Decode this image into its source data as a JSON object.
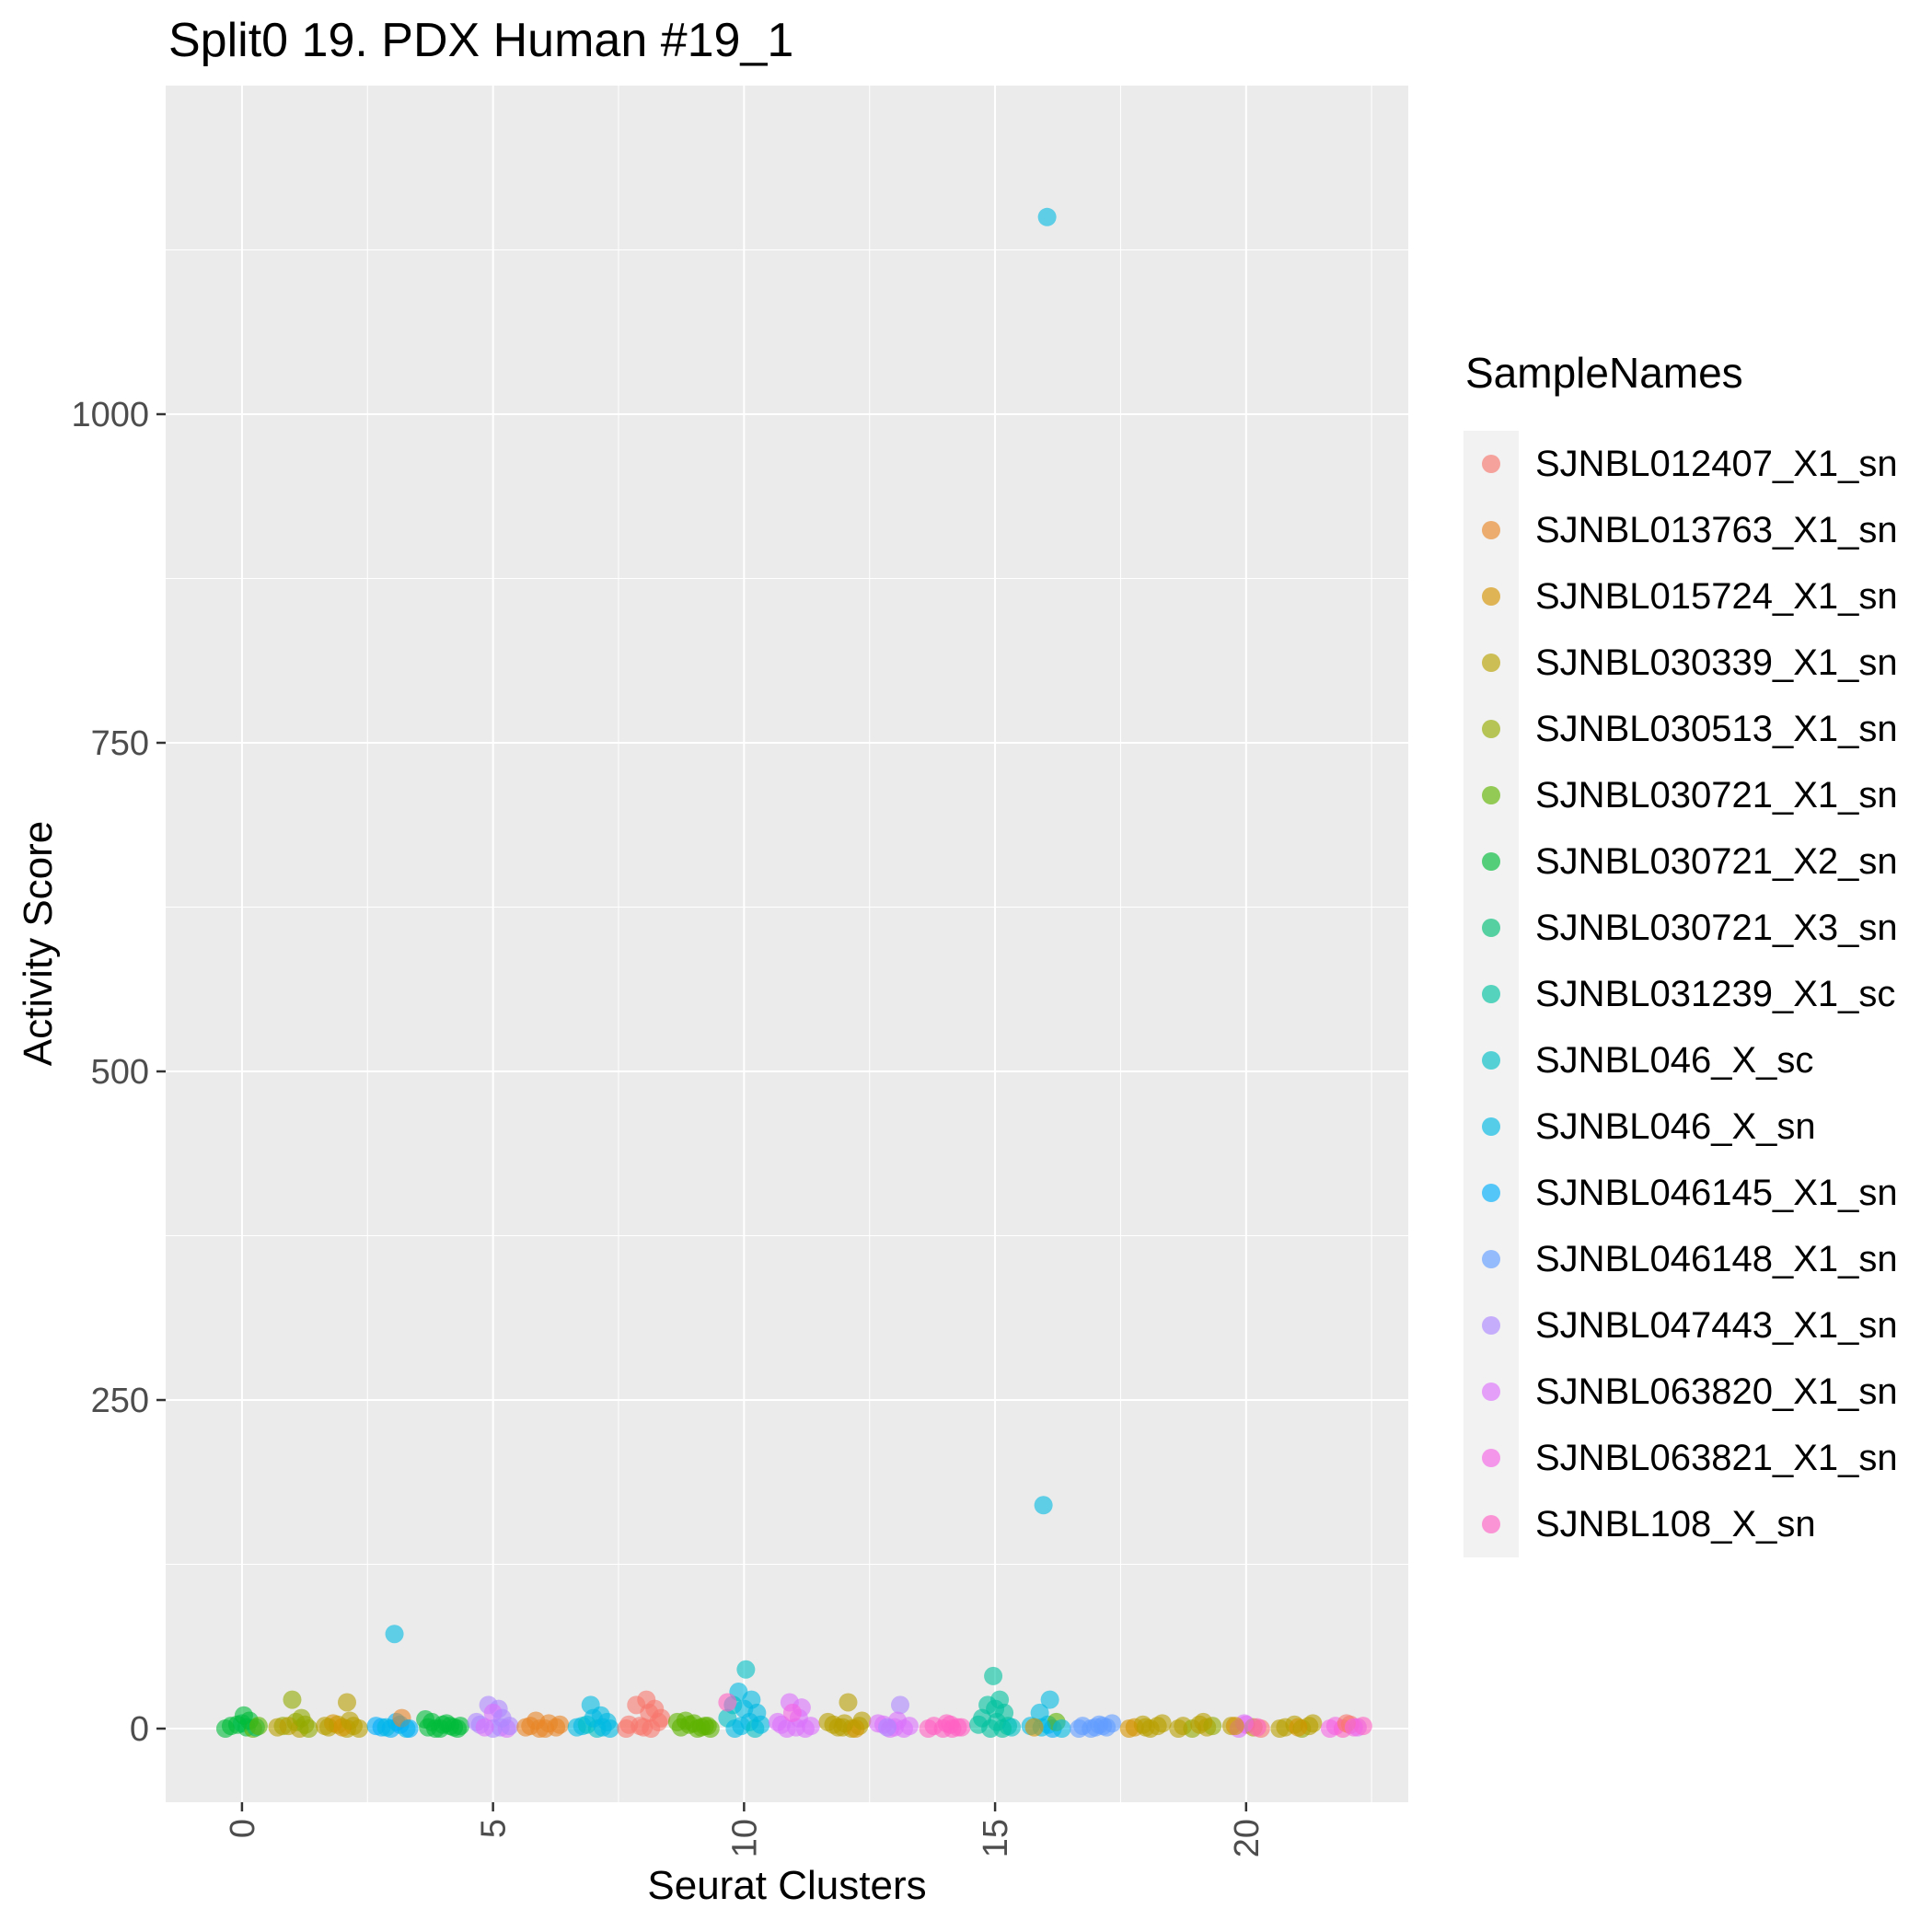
{
  "chart_data": {
    "type": "scatter",
    "title": "Split0 19. PDX Human #19_1",
    "xlabel": "Seurat Clusters",
    "ylabel": "Activity Score",
    "legend_title": "SampleNames",
    "xlim": [
      -1.52,
      23.23
    ],
    "ylim": [
      -56,
      1250
    ],
    "xticks": [
      0,
      5,
      10,
      15,
      20
    ],
    "yticks": [
      0,
      250,
      500,
      750,
      1000
    ],
    "grid": "major+minor",
    "legend_position": "right",
    "panel_bg": "#EBEBEB",
    "grid_color": "#FFFFFF",
    "axis_text_color": "#4D4D4D",
    "tick_color": "#333333",
    "point_alpha": 0.6,
    "samples": [
      {
        "name": "SJNBL012407_X1_sn",
        "color": "#F8766D"
      },
      {
        "name": "SJNBL013763_X1_sn",
        "color": "#E88526"
      },
      {
        "name": "SJNBL015724_X1_sn",
        "color": "#D39200"
      },
      {
        "name": "SJNBL030339_X1_sn",
        "color": "#B79F00"
      },
      {
        "name": "SJNBL030513_X1_sn",
        "color": "#93AA00"
      },
      {
        "name": "SJNBL030721_X1_sn",
        "color": "#5EB300"
      },
      {
        "name": "SJNBL030721_X2_sn",
        "color": "#00BA38"
      },
      {
        "name": "SJNBL030721_X3_sn",
        "color": "#00BF74"
      },
      {
        "name": "SJNBL031239_X1_sc",
        "color": "#00C19F"
      },
      {
        "name": "SJNBL046_X_sc",
        "color": "#00BFC4"
      },
      {
        "name": "SJNBL046_X_sn",
        "color": "#00B9E3"
      },
      {
        "name": "SJNBL046145_X1_sn",
        "color": "#00ADFA"
      },
      {
        "name": "SJNBL046148_X1_sn",
        "color": "#619CFF"
      },
      {
        "name": "SJNBL047443_X1_sn",
        "color": "#AE87FF"
      },
      {
        "name": "SJNBL063820_X1_sn",
        "color": "#DB72FB"
      },
      {
        "name": "SJNBL063821_X1_sn",
        "color": "#F564E3"
      },
      {
        "name": "SJNBL108_X_sn",
        "color": "#FF61C3"
      }
    ],
    "points_format": [
      "cluster",
      "activity_score",
      "sample_index",
      "jitter_px"
    ],
    "points": [
      [
        0,
        2,
        6,
        -12
      ],
      [
        0,
        1,
        6,
        5
      ],
      [
        0,
        4,
        7,
        0
      ],
      [
        0,
        0,
        5,
        12
      ],
      [
        0,
        3,
        6,
        -5
      ],
      [
        0,
        1,
        7,
        15
      ],
      [
        0,
        6,
        6,
        8
      ],
      [
        0,
        0,
        6,
        -18
      ],
      [
        0,
        10,
        6,
        2
      ],
      [
        0,
        2,
        5,
        18
      ],
      [
        1,
        22,
        4,
        0
      ],
      [
        1,
        2,
        4,
        -10
      ],
      [
        1,
        0,
        3,
        8
      ],
      [
        1,
        3,
        4,
        14
      ],
      [
        1,
        1,
        3,
        -16
      ],
      [
        1,
        5,
        4,
        4
      ],
      [
        1,
        0,
        4,
        18
      ],
      [
        1,
        2,
        3,
        -4
      ],
      [
        1,
        8,
        4,
        10
      ],
      [
        2,
        20,
        3,
        5
      ],
      [
        2,
        1,
        3,
        -15
      ],
      [
        2,
        3,
        3,
        -5
      ],
      [
        2,
        0,
        3,
        5
      ],
      [
        2,
        2,
        3,
        12
      ],
      [
        2,
        4,
        2,
        -10
      ],
      [
        2,
        0,
        3,
        18
      ],
      [
        2,
        1,
        2,
        0
      ],
      [
        2,
        6,
        3,
        8
      ],
      [
        2,
        2,
        3,
        -19
      ],
      [
        3,
        72,
        10,
        2
      ],
      [
        3,
        1,
        11,
        -12
      ],
      [
        3,
        0,
        11,
        -2
      ],
      [
        3,
        3,
        11,
        8
      ],
      [
        3,
        0,
        10,
        15
      ],
      [
        3,
        2,
        11,
        -18
      ],
      [
        3,
        5,
        11,
        4
      ],
      [
        3,
        8,
        1,
        10
      ],
      [
        3,
        0,
        11,
        18
      ],
      [
        3,
        1,
        10,
        -7
      ],
      [
        4,
        1,
        6,
        -16
      ],
      [
        4,
        0,
        6,
        -8
      ],
      [
        4,
        3,
        6,
        0
      ],
      [
        4,
        2,
        6,
        8
      ],
      [
        4,
        0,
        6,
        16
      ],
      [
        4,
        5,
        6,
        -12
      ],
      [
        4,
        1,
        6,
        12
      ],
      [
        4,
        4,
        6,
        4
      ],
      [
        4,
        0,
        6,
        -3
      ],
      [
        4,
        7,
        6,
        -19
      ],
      [
        4,
        2,
        6,
        19
      ],
      [
        5,
        18,
        13,
        -5
      ],
      [
        5,
        15,
        13,
        6
      ],
      [
        5,
        12,
        14,
        0
      ],
      [
        5,
        3,
        13,
        -14
      ],
      [
        5,
        1,
        13,
        8
      ],
      [
        5,
        0,
        14,
        15
      ],
      [
        5,
        2,
        13,
        18
      ],
      [
        5,
        5,
        13,
        -18
      ],
      [
        5,
        0,
        13,
        0
      ],
      [
        5,
        8,
        13,
        10
      ],
      [
        5,
        1,
        14,
        -9
      ],
      [
        6,
        2,
        1,
        -14
      ],
      [
        6,
        0,
        1,
        -4
      ],
      [
        6,
        4,
        1,
        6
      ],
      [
        6,
        1,
        1,
        14
      ],
      [
        6,
        0,
        1,
        2
      ],
      [
        6,
        6,
        1,
        -8
      ],
      [
        6,
        3,
        1,
        18
      ],
      [
        6,
        1,
        1,
        -19
      ],
      [
        7,
        18,
        10,
        -3
      ],
      [
        7,
        10,
        10,
        8
      ],
      [
        7,
        2,
        10,
        -12
      ],
      [
        7,
        0,
        9,
        4
      ],
      [
        7,
        5,
        10,
        15
      ],
      [
        7,
        1,
        10,
        -18
      ],
      [
        7,
        3,
        9,
        -7
      ],
      [
        7,
        0,
        10,
        18
      ],
      [
        7,
        8,
        10,
        0
      ],
      [
        7,
        1,
        10,
        10
      ],
      [
        8,
        22,
        0,
        3
      ],
      [
        8,
        18,
        0,
        -8
      ],
      [
        8,
        15,
        0,
        12
      ],
      [
        8,
        3,
        0,
        -16
      ],
      [
        8,
        1,
        0,
        0
      ],
      [
        8,
        0,
        0,
        8
      ],
      [
        8,
        5,
        0,
        16
      ],
      [
        8,
        2,
        0,
        -4
      ],
      [
        8,
        0,
        0,
        -19
      ],
      [
        8,
        8,
        0,
        19
      ],
      [
        8,
        12,
        0,
        6
      ],
      [
        9,
        1,
        5,
        -14
      ],
      [
        9,
        3,
        5,
        -5
      ],
      [
        9,
        0,
        5,
        4
      ],
      [
        9,
        2,
        5,
        12
      ],
      [
        9,
        5,
        5,
        -18
      ],
      [
        9,
        0,
        5,
        18
      ],
      [
        9,
        4,
        5,
        0
      ],
      [
        9,
        1,
        5,
        8
      ],
      [
        9,
        6,
        5,
        -9
      ],
      [
        9,
        2,
        5,
        15
      ],
      [
        10,
        45,
        9,
        2
      ],
      [
        10,
        28,
        10,
        -6
      ],
      [
        10,
        22,
        10,
        8
      ],
      [
        10,
        18,
        9,
        -12
      ],
      [
        10,
        15,
        10,
        0
      ],
      [
        10,
        12,
        10,
        14
      ],
      [
        10,
        8,
        9,
        -18
      ],
      [
        10,
        5,
        10,
        6
      ],
      [
        10,
        2,
        10,
        -3
      ],
      [
        10,
        0,
        9,
        12
      ],
      [
        10,
        3,
        10,
        18
      ],
      [
        10,
        20,
        16,
        -18
      ],
      [
        10,
        0,
        10,
        -10
      ],
      [
        11,
        20,
        14,
        -5
      ],
      [
        11,
        16,
        14,
        8
      ],
      [
        11,
        3,
        14,
        -14
      ],
      [
        11,
        1,
        14,
        2
      ],
      [
        11,
        0,
        14,
        12
      ],
      [
        11,
        5,
        14,
        -18
      ],
      [
        11,
        2,
        14,
        18
      ],
      [
        11,
        0,
        14,
        -8
      ],
      [
        11,
        8,
        14,
        5
      ],
      [
        11,
        12,
        15,
        -2
      ],
      [
        12,
        20,
        3,
        4
      ],
      [
        12,
        3,
        3,
        -12
      ],
      [
        12,
        1,
        3,
        -2
      ],
      [
        12,
        0,
        3,
        8
      ],
      [
        12,
        2,
        3,
        16
      ],
      [
        12,
        5,
        3,
        -18
      ],
      [
        12,
        0,
        2,
        12
      ],
      [
        12,
        4,
        3,
        0
      ],
      [
        12,
        1,
        3,
        -7
      ],
      [
        12,
        6,
        3,
        19
      ],
      [
        13,
        18,
        13,
        6
      ],
      [
        13,
        3,
        14,
        -12
      ],
      [
        13,
        1,
        14,
        0
      ],
      [
        13,
        0,
        14,
        10
      ],
      [
        13,
        4,
        14,
        -18
      ],
      [
        13,
        2,
        14,
        16
      ],
      [
        13,
        0,
        14,
        -5
      ],
      [
        13,
        6,
        14,
        3
      ],
      [
        13,
        1,
        13,
        -8
      ],
      [
        14,
        2,
        16,
        -12
      ],
      [
        14,
        0,
        16,
        -2
      ],
      [
        14,
        3,
        16,
        6
      ],
      [
        14,
        1,
        16,
        14
      ],
      [
        14,
        0,
        16,
        -18
      ],
      [
        14,
        4,
        16,
        2
      ],
      [
        14,
        1,
        16,
        18
      ],
      [
        14,
        0,
        16,
        8
      ],
      [
        15,
        40,
        8,
        -2
      ],
      [
        15,
        22,
        8,
        5
      ],
      [
        15,
        18,
        8,
        -8
      ],
      [
        15,
        12,
        8,
        10
      ],
      [
        15,
        8,
        8,
        -14
      ],
      [
        15,
        5,
        8,
        2
      ],
      [
        15,
        2,
        8,
        14
      ],
      [
        15,
        0,
        8,
        -5
      ],
      [
        15,
        1,
        9,
        18
      ],
      [
        15,
        3,
        8,
        -18
      ],
      [
        15,
        0,
        8,
        8
      ],
      [
        15,
        15,
        8,
        0
      ],
      [
        16,
        1150,
        10,
        2
      ],
      [
        16,
        170,
        10,
        -2
      ],
      [
        16,
        22,
        10,
        5
      ],
      [
        16,
        12,
        10,
        -6
      ],
      [
        16,
        3,
        10,
        3
      ],
      [
        16,
        0,
        11,
        8
      ],
      [
        16,
        2,
        10,
        -16
      ],
      [
        16,
        5,
        5,
        12
      ],
      [
        16,
        0,
        10,
        18
      ],
      [
        16,
        1,
        10,
        -4
      ],
      [
        16,
        1,
        2,
        -12
      ],
      [
        17,
        2,
        12,
        -14
      ],
      [
        17,
        0,
        12,
        -5
      ],
      [
        17,
        3,
        12,
        4
      ],
      [
        17,
        1,
        12,
        12
      ],
      [
        17,
        0,
        12,
        -18
      ],
      [
        17,
        4,
        12,
        18
      ],
      [
        17,
        1,
        12,
        0
      ],
      [
        17,
        2,
        12,
        8
      ],
      [
        18,
        1,
        2,
        -12
      ],
      [
        18,
        3,
        3,
        -3
      ],
      [
        18,
        0,
        3,
        5
      ],
      [
        18,
        2,
        3,
        13
      ],
      [
        18,
        0,
        2,
        -18
      ],
      [
        18,
        4,
        3,
        18
      ],
      [
        18,
        1,
        3,
        0
      ],
      [
        19,
        2,
        3,
        -14
      ],
      [
        19,
        0,
        4,
        -4
      ],
      [
        19,
        3,
        3,
        4
      ],
      [
        19,
        1,
        3,
        12
      ],
      [
        19,
        0,
        3,
        -19
      ],
      [
        19,
        2,
        4,
        18
      ],
      [
        19,
        5,
        3,
        8
      ],
      [
        20,
        2,
        3,
        -16
      ],
      [
        20,
        0,
        14,
        -8
      ],
      [
        20,
        3,
        15,
        0
      ],
      [
        20,
        1,
        3,
        8
      ],
      [
        20,
        0,
        0,
        16
      ],
      [
        20,
        4,
        14,
        -2
      ],
      [
        20,
        1,
        16,
        12
      ],
      [
        20,
        2,
        2,
        -12
      ],
      [
        21,
        1,
        3,
        -12
      ],
      [
        21,
        3,
        3,
        -2
      ],
      [
        21,
        0,
        4,
        6
      ],
      [
        21,
        2,
        3,
        14
      ],
      [
        21,
        0,
        3,
        -18
      ],
      [
        21,
        4,
        3,
        18
      ],
      [
        21,
        1,
        2,
        2
      ],
      [
        22,
        2,
        15,
        -12
      ],
      [
        22,
        0,
        16,
        -4
      ],
      [
        22,
        3,
        0,
        4
      ],
      [
        22,
        1,
        14,
        12
      ],
      [
        22,
        0,
        15,
        -18
      ],
      [
        22,
        2,
        16,
        18
      ],
      [
        22,
        4,
        0,
        0
      ],
      [
        22,
        1,
        15,
        8
      ]
    ]
  }
}
